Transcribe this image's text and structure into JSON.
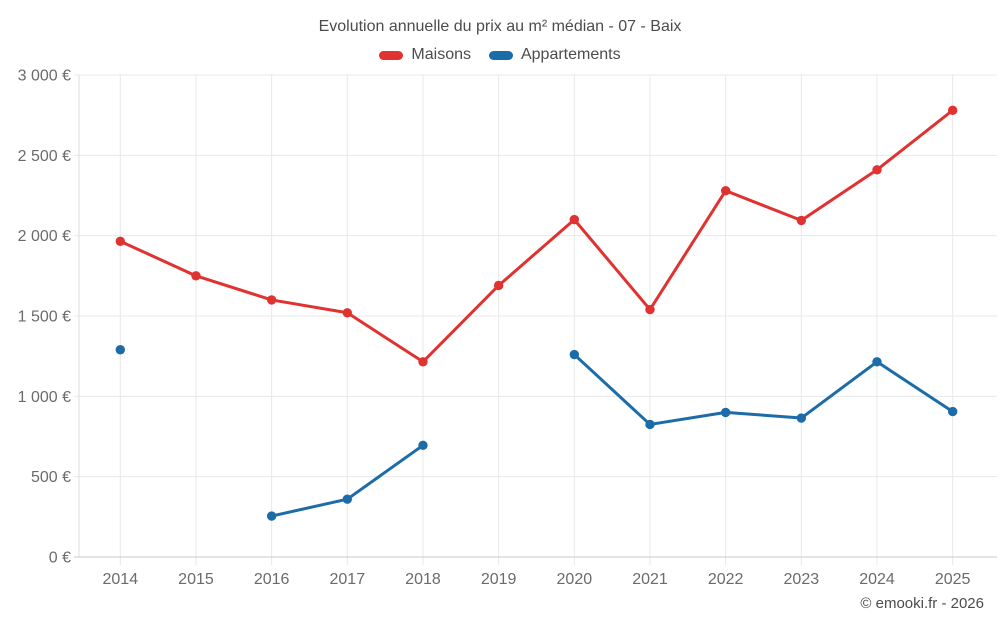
{
  "title": "Evolution annuelle du prix au m² médian - 07 - Baix",
  "legend": [
    {
      "label": "Maisons",
      "color": "#e03231"
    },
    {
      "label": "Appartements",
      "color": "#1b6ca8"
    }
  ],
  "footer": "© emooki.fr - 2026",
  "colors": {
    "grid": "#e7e8e9",
    "axis": "#c9cacb",
    "left_border": "#dcdddf",
    "tick_text": "#6b6b6b",
    "title_text": "#4c4c4c"
  },
  "chart_data": {
    "type": "line",
    "title": "Evolution annuelle du prix au m² médian - 07 - Baix",
    "x": [
      "2014",
      "2015",
      "2016",
      "2017",
      "2018",
      "2019",
      "2020",
      "2021",
      "2022",
      "2023",
      "2024",
      "2025"
    ],
    "series": [
      {
        "name": "Maisons",
        "color": "#e03231",
        "values": [
          1965,
          1750,
          1600,
          1520,
          1215,
          1690,
          2100,
          1540,
          2280,
          2095,
          2410,
          2780
        ]
      },
      {
        "name": "Appartements",
        "color": "#1b6ca8",
        "values": [
          1290,
          null,
          255,
          360,
          695,
          null,
          1260,
          825,
          900,
          865,
          1215,
          905
        ]
      }
    ],
    "xlabel": "",
    "ylabel": "",
    "ylim": [
      0,
      3000
    ],
    "yticks": [
      {
        "value": 0,
        "label": "0 €"
      },
      {
        "value": 500,
        "label": "500 €"
      },
      {
        "value": 1000,
        "label": "1 000 €"
      },
      {
        "value": 1500,
        "label": "1 500 €"
      },
      {
        "value": 2000,
        "label": "2 000 €"
      },
      {
        "value": 2500,
        "label": "2 500 €"
      },
      {
        "value": 3000,
        "label": "3 000 €"
      }
    ],
    "grid": true,
    "legend_position": "top",
    "attribution": "© emooki.fr - 2026"
  }
}
